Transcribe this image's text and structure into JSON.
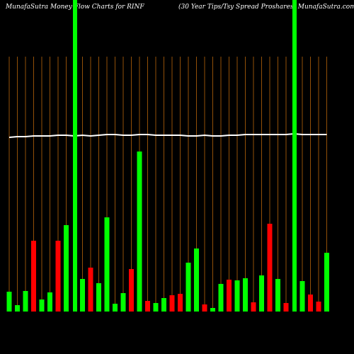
{
  "chart_data": {
    "type": "bar",
    "title": "MunafaSutra  Money Flow  Charts for RINF",
    "subtitle": "(30  Year Tips/Tsy Spread Proshares) MunafaSutra.com",
    "categories": [
      null,
      null,
      null,
      null,
      null,
      null,
      null,
      null,
      null,
      null,
      null,
      null,
      null,
      null,
      null,
      null,
      null,
      null,
      null,
      null,
      null,
      null,
      null,
      null,
      null,
      null,
      null,
      null,
      null,
      null,
      null,
      null,
      null,
      null,
      null,
      null,
      null,
      null,
      null,
      null
    ],
    "values": [
      28,
      9,
      29,
      100,
      17,
      27,
      100,
      122,
      null,
      46,
      62,
      40,
      133,
      11,
      26,
      60,
      226,
      15,
      12,
      19,
      23,
      25,
      69,
      89,
      10,
      5,
      39,
      45,
      44,
      47,
      13,
      51,
      124,
      46,
      12,
      null,
      43,
      24,
      14,
      83
    ],
    "colors": [
      "#00ff00",
      "#00ff00",
      "#00ff00",
      "#ff0000",
      "#00ff00",
      "#00ff00",
      "#ff0000",
      "#00ff00",
      null,
      "#00ff00",
      "#ff0000",
      "#00ff00",
      "#00ff00",
      "#00ff00",
      "#00ff00",
      "#ff0000",
      "#00ff00",
      "#ff0000",
      "#00ff00",
      "#00ff00",
      "#ff0000",
      "#ff0000",
      "#00ff00",
      "#00ff00",
      "#ff0000",
      "#00ff00",
      "#00ff00",
      "#ff0000",
      "#00ff00",
      "#00ff00",
      "#ff0000",
      "#00ff00",
      "#ff0000",
      "#00ff00",
      "#ff0000",
      null,
      "#00ff00",
      "#ff0000",
      "#ff0000",
      "#00ff00"
    ],
    "line": {
      "color": "#ffffff",
      "values": [
        246,
        247,
        247,
        248,
        248,
        248,
        249,
        249,
        248,
        249,
        248,
        249,
        250,
        250,
        249,
        249,
        250,
        250,
        249,
        249,
        249,
        249,
        248,
        248,
        249,
        248,
        248,
        249,
        249,
        250,
        250,
        250,
        250,
        250,
        250,
        251,
        250,
        250,
        250,
        250
      ]
    },
    "ylim": [
      0,
      360
    ],
    "grid_color": "#b8650a"
  }
}
